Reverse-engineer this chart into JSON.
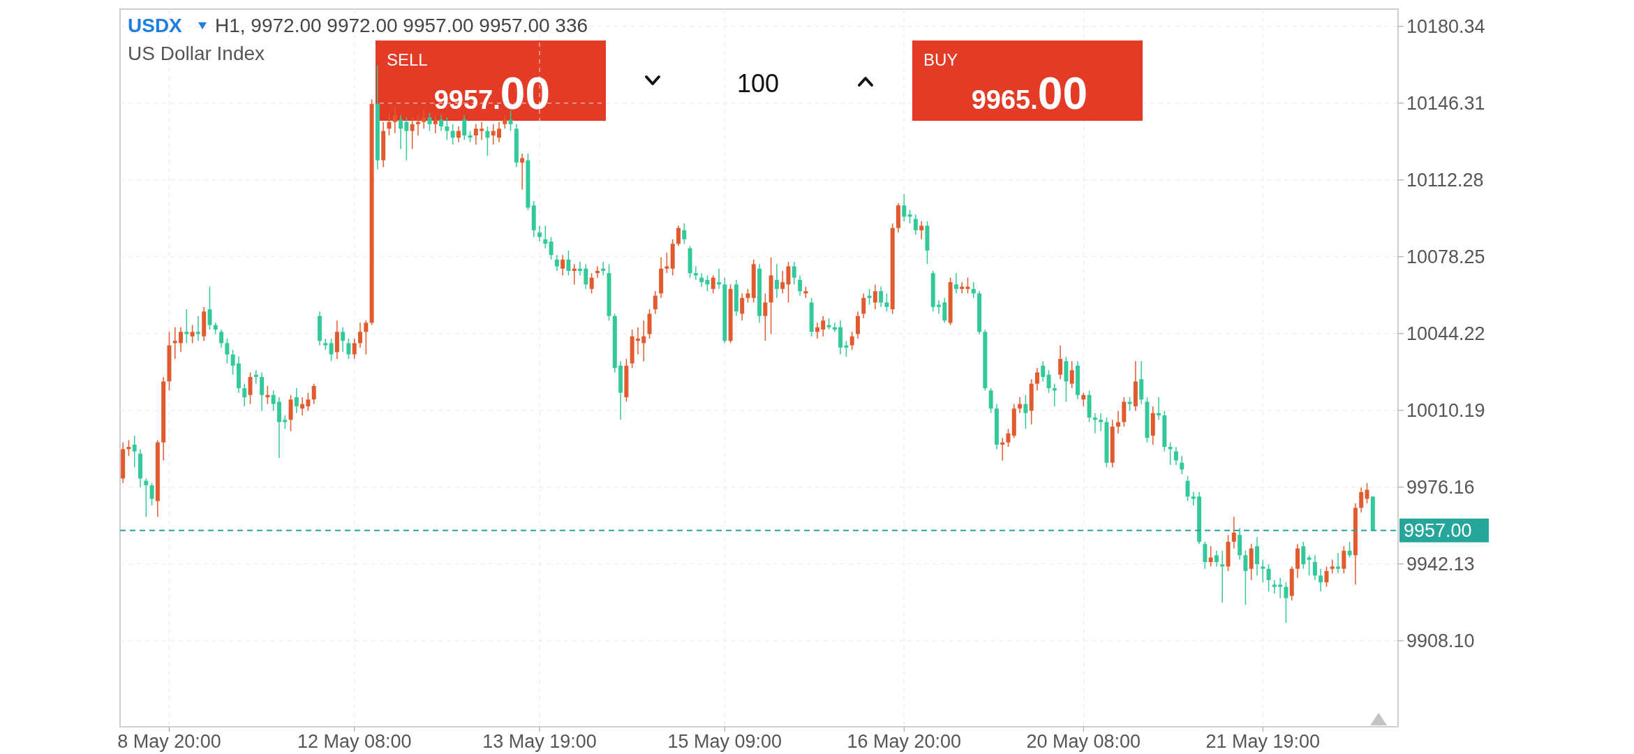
{
  "chart_data": {
    "type": "candlestick",
    "title": "USDX",
    "subtitle": "US Dollar Index",
    "annotations": [
      "H1, 9972.00 9972.00 9957.00 9957.00 336",
      "SELL",
      "9957.00",
      "100",
      "BUY",
      "9965.00"
    ],
    "categories": [
      null,
      null,
      null,
      null,
      null,
      null,
      null,
      null,
      "8 May 20:00",
      null,
      null,
      null,
      null,
      null,
      null,
      null,
      null,
      null,
      null,
      null,
      null,
      null,
      null,
      null,
      null,
      null,
      null,
      null,
      null,
      null,
      null,
      null,
      null,
      null,
      null,
      null,
      null,
      null,
      null,
      null,
      "12 May 08:00",
      null,
      null,
      null,
      null,
      null,
      null,
      null,
      null,
      null,
      null,
      null,
      null,
      null,
      null,
      null,
      null,
      null,
      null,
      null,
      null,
      null,
      null,
      null,
      null,
      null,
      null,
      null,
      null,
      null,
      null,
      null,
      "13 May 19:00",
      null,
      null,
      null,
      null,
      null,
      null,
      null,
      null,
      null,
      null,
      null,
      null,
      null,
      null,
      null,
      null,
      null,
      null,
      null,
      null,
      null,
      null,
      null,
      null,
      null,
      null,
      null,
      null,
      null,
      null,
      null,
      "15 May 09:00",
      null,
      null,
      null,
      null,
      null,
      null,
      null,
      null,
      null,
      null,
      null,
      null,
      null,
      null,
      null,
      null,
      null,
      null,
      null,
      null,
      null,
      null,
      null,
      null,
      null,
      null,
      null,
      null,
      null,
      null,
      "16 May 20:00",
      null,
      null,
      null,
      null,
      null,
      null,
      null,
      null,
      null,
      null,
      null,
      null,
      null,
      null,
      null,
      null,
      null,
      null,
      null,
      null,
      null,
      null,
      null,
      null,
      null,
      null,
      null,
      null,
      null,
      null,
      "20 May 08:00",
      null,
      null,
      null,
      null,
      null,
      null,
      null,
      null,
      null,
      null,
      null,
      null,
      null,
      null,
      null,
      null,
      null,
      null,
      null,
      null,
      null,
      null,
      null,
      null,
      null,
      null,
      null,
      null,
      null,
      null,
      "21 May 19:00",
      null,
      null,
      null,
      null,
      null,
      null,
      null,
      null,
      null,
      null,
      null,
      null,
      null,
      null,
      null,
      null,
      null,
      null,
      null
    ],
    "ohlc": [
      [
        9980,
        9996,
        9978,
        9993
      ],
      [
        9993,
        9997,
        9990,
        9994
      ],
      [
        9995,
        9999,
        9985,
        9992
      ],
      [
        9991,
        9993,
        9976,
        9980
      ],
      [
        9979,
        9980,
        9963,
        9977
      ],
      [
        9977,
        9978,
        9968,
        9971
      ],
      [
        9970,
        9997,
        9963,
        9996
      ],
      [
        9996,
        10025,
        9988,
        10023
      ],
      [
        10023,
        10045,
        10019,
        10039
      ],
      [
        10040,
        10047,
        10033,
        10041
      ],
      [
        10040,
        10047,
        10036,
        10045
      ],
      [
        10045,
        10055,
        10040,
        10044
      ],
      [
        10043,
        10048,
        10040,
        10045
      ],
      [
        10045,
        10052,
        10041,
        10044
      ],
      [
        10043,
        10056,
        10041,
        10054
      ],
      [
        10055,
        10065,
        10046,
        10048
      ],
      [
        10048,
        10049,
        10044,
        10046
      ],
      [
        10045,
        10046,
        10038,
        10040
      ],
      [
        10040,
        10042,
        10031,
        10035
      ],
      [
        10035,
        10037,
        10026,
        10030
      ],
      [
        10031,
        10034,
        10018,
        10020
      ],
      [
        10020,
        10022,
        10012,
        10016
      ],
      [
        10017,
        10027,
        10013,
        10025
      ],
      [
        10026,
        10028,
        10022,
        10025
      ],
      [
        10025,
        10027,
        10010,
        10017
      ],
      [
        10016,
        10021,
        10013,
        10017
      ],
      [
        10017,
        10019,
        10010,
        10013
      ],
      [
        10014,
        10016,
        9989,
        10005
      ],
      [
        10006,
        10008,
        10002,
        10005
      ],
      [
        10006,
        10017,
        10001,
        10015
      ],
      [
        10016,
        10020,
        10009,
        10012
      ],
      [
        10011,
        10016,
        10008,
        10013
      ],
      [
        10012,
        10018,
        10010,
        10015
      ],
      [
        10015,
        10022,
        10013,
        10021
      ],
      [
        10052,
        10054,
        10039,
        10041
      ],
      [
        10040,
        10042,
        10037,
        10039
      ],
      [
        10040,
        10042,
        10032,
        10035
      ],
      [
        10036,
        10050,
        10033,
        10045
      ],
      [
        10045,
        10047,
        10036,
        10041
      ],
      [
        10040,
        10042,
        10033,
        10035
      ],
      [
        10035,
        10042,
        10033,
        10040
      ],
      [
        10040,
        10049,
        10038,
        10045
      ],
      [
        10045,
        10050,
        10035,
        10049
      ],
      [
        10049,
        10148,
        10048,
        10146
      ],
      [
        10146,
        10163,
        10117,
        10121
      ],
      [
        10121,
        10138,
        10118,
        10134
      ],
      [
        10135,
        10142,
        10132,
        10138
      ],
      [
        10138,
        10145,
        10133,
        10141
      ],
      [
        10139,
        10141,
        10126,
        10135
      ],
      [
        10138,
        10140,
        10121,
        10134
      ],
      [
        10134,
        10140,
        10126,
        10137
      ],
      [
        10137,
        10141,
        10132,
        10138
      ],
      [
        10138,
        10143,
        10135,
        10140
      ],
      [
        10140,
        10142,
        10134,
        10137
      ],
      [
        10137,
        10141,
        10133,
        10139
      ],
      [
        10139,
        10141,
        10134,
        10136
      ],
      [
        10136,
        10140,
        10130,
        10134
      ],
      [
        10134,
        10137,
        10128,
        10131
      ],
      [
        10131,
        10136,
        10129,
        10134
      ],
      [
        10139,
        10141,
        10130,
        10132
      ],
      [
        10132,
        10134,
        10129,
        10131
      ],
      [
        10132,
        10137,
        10128,
        10135
      ],
      [
        10134,
        10138,
        10130,
        10135
      ],
      [
        10134,
        10136,
        10123,
        10131
      ],
      [
        10132,
        10137,
        10128,
        10134
      ],
      [
        10131,
        10138,
        10129,
        10135
      ],
      [
        10137,
        10141,
        10135,
        10139
      ],
      [
        10139,
        10143,
        10134,
        10137
      ],
      [
        10135,
        10137,
        10118,
        10120
      ],
      [
        10120,
        10124,
        10108,
        10122
      ],
      [
        10121,
        10124,
        10099,
        10100
      ],
      [
        10101,
        10103,
        10087,
        10090
      ],
      [
        10089,
        10092,
        10085,
        10087
      ],
      [
        10086,
        10092,
        10082,
        10084
      ],
      [
        10085,
        10087,
        10077,
        10079
      ],
      [
        10077,
        10079,
        10072,
        10074
      ],
      [
        10073,
        10079,
        10070,
        10077
      ],
      [
        10077,
        10081,
        10070,
        10072
      ],
      [
        10072,
        10075,
        10066,
        10073
      ],
      [
        10073,
        10076,
        10070,
        10072
      ],
      [
        10073,
        10075,
        10064,
        10066
      ],
      [
        10064,
        10071,
        10062,
        10069
      ],
      [
        10071,
        10074,
        10069,
        10072
      ],
      [
        10073,
        10076,
        10070,
        10072
      ],
      [
        10071,
        10075,
        10050,
        10052
      ],
      [
        10052,
        10053,
        10027,
        10029
      ],
      [
        10030,
        10032,
        10006,
        10018
      ],
      [
        10016,
        10033,
        10014,
        10030
      ],
      [
        10031,
        10046,
        10029,
        10043
      ],
      [
        10041,
        10047,
        10035,
        10042
      ],
      [
        10040,
        10050,
        10032,
        10043
      ],
      [
        10044,
        10055,
        10042,
        10053
      ],
      [
        10055,
        10063,
        10053,
        10061
      ],
      [
        10062,
        10078,
        10060,
        10073
      ],
      [
        10073,
        10080,
        10071,
        10074
      ],
      [
        10073,
        10086,
        10070,
        10084
      ],
      [
        10084,
        10092,
        10083,
        10091
      ],
      [
        10090,
        10093,
        10084,
        10086
      ],
      [
        10082,
        10083,
        10069,
        10071
      ],
      [
        10071,
        10074,
        10068,
        10070
      ],
      [
        10069,
        10071,
        10065,
        10067
      ],
      [
        10068,
        10070,
        10063,
        10066
      ],
      [
        10064,
        10070,
        10062,
        10069
      ],
      [
        10067,
        10073,
        10064,
        10066
      ],
      [
        10066,
        10069,
        10040,
        10041
      ],
      [
        10041,
        10066,
        10040,
        10064
      ],
      [
        10066,
        10068,
        10052,
        10054
      ],
      [
        10053,
        10062,
        10050,
        10060
      ],
      [
        10060,
        10064,
        10058,
        10062
      ],
      [
        10060,
        10077,
        10058,
        10075
      ],
      [
        10073,
        10075,
        10049,
        10052
      ],
      [
        10052,
        10062,
        10041,
        10058
      ],
      [
        10058,
        10078,
        10044,
        10070
      ],
      [
        10068,
        10075,
        10060,
        10064
      ],
      [
        10064,
        10072,
        10062,
        10067
      ],
      [
        10066,
        10076,
        10058,
        10074
      ],
      [
        10074,
        10076,
        10066,
        10069
      ],
      [
        10068,
        10070,
        10061,
        10063
      ],
      [
        10062,
        10065,
        10060,
        10063
      ],
      [
        10058,
        10060,
        10043,
        10045
      ],
      [
        10045,
        10049,
        10042,
        10047
      ],
      [
        10046,
        10052,
        10043,
        10050
      ],
      [
        10048,
        10051,
        10046,
        10047
      ],
      [
        10047,
        10049,
        10045,
        10046
      ],
      [
        10047,
        10050,
        10035,
        10038
      ],
      [
        10039,
        10041,
        10034,
        10038
      ],
      [
        10039,
        10045,
        10037,
        10043
      ],
      [
        10044,
        10054,
        10042,
        10052
      ],
      [
        10053,
        10062,
        10051,
        10060
      ],
      [
        10061,
        10064,
        10057,
        10060
      ],
      [
        10058,
        10066,
        10055,
        10063
      ],
      [
        10063,
        10065,
        10056,
        10058
      ],
      [
        10058,
        10062,
        10054,
        10056
      ],
      [
        10055,
        10093,
        10053,
        10091
      ],
      [
        10091,
        10102,
        10089,
        10101
      ],
      [
        10101,
        10106,
        10094,
        10096
      ],
      [
        10097,
        10099,
        10093,
        10096
      ],
      [
        10095,
        10097,
        10088,
        10090
      ],
      [
        10090,
        10094,
        10086,
        10092
      ],
      [
        10092,
        10094,
        10075,
        10081
      ],
      [
        10071,
        10072,
        10054,
        10056
      ],
      [
        10057,
        10059,
        10053,
        10056
      ],
      [
        10058,
        10060,
        10049,
        10050
      ],
      [
        10049,
        10069,
        10048,
        10067
      ],
      [
        10066,
        10071,
        10062,
        10064
      ],
      [
        10064,
        10067,
        10062,
        10065
      ],
      [
        10064,
        10069,
        10062,
        10065
      ],
      [
        10064,
        10067,
        10060,
        10062
      ],
      [
        10062,
        10063,
        10044,
        10045
      ],
      [
        10045,
        10046,
        10019,
        10020
      ],
      [
        10019,
        10020,
        10009,
        10011
      ],
      [
        10011,
        10013,
        9993,
        9995
      ],
      [
        9995,
        9998,
        9988,
        9996
      ],
      [
        9996,
        10002,
        9994,
        10000
      ],
      [
        9999,
        10013,
        9998,
        10011
      ],
      [
        10011,
        10016,
        10009,
        10013
      ],
      [
        10013,
        10017,
        10002,
        10009
      ],
      [
        10010,
        10024,
        10004,
        10022
      ],
      [
        10022,
        10029,
        10019,
        10027
      ],
      [
        10030,
        10032,
        10023,
        10025
      ],
      [
        10026,
        10028,
        10018,
        10020
      ],
      [
        10020,
        10022,
        10012,
        10019
      ],
      [
        10026,
        10039,
        10024,
        10033
      ],
      [
        10032,
        10034,
        10014,
        10023
      ],
      [
        10022,
        10032,
        10020,
        10028
      ],
      [
        10030,
        10032,
        10015,
        10017
      ],
      [
        10015,
        10018,
        10012,
        10017
      ],
      [
        10017,
        10019,
        10005,
        10007
      ],
      [
        10007,
        10009,
        10000,
        10006
      ],
      [
        10006,
        10009,
        10001,
        10005
      ],
      [
        10005,
        10007,
        9985,
        9987
      ],
      [
        9987,
        10006,
        9985,
        10003
      ],
      [
        10003,
        10010,
        10000,
        10005
      ],
      [
        10005,
        10016,
        10003,
        10014
      ],
      [
        10014,
        10016,
        10010,
        10013
      ],
      [
        10012,
        10032,
        10010,
        10023
      ],
      [
        10024,
        10032,
        10013,
        10015
      ],
      [
        10014,
        10016,
        9996,
        9998
      ],
      [
        9999,
        10012,
        9995,
        10009
      ],
      [
        10009,
        10016,
        10006,
        10008
      ],
      [
        10008,
        10010,
        9992,
        9994
      ],
      [
        9994,
        9996,
        9986,
        9993
      ],
      [
        9992,
        9994,
        9986,
        9988
      ],
      [
        9987,
        9990,
        9982,
        9984
      ],
      [
        9979,
        9981,
        9970,
        9972
      ],
      [
        9972,
        9974,
        9968,
        9971
      ],
      [
        9972,
        9974,
        9951,
        9952
      ],
      [
        9951,
        9952,
        9940,
        9943
      ],
      [
        9943,
        9950,
        9941,
        9945
      ],
      [
        9946,
        9948,
        9941,
        9943
      ],
      [
        9942,
        9948,
        9925,
        9941
      ],
      [
        9941,
        9955,
        9939,
        9952
      ],
      [
        9952,
        9963,
        9949,
        9956
      ],
      [
        9955,
        9958,
        9944,
        9946
      ],
      [
        9946,
        9948,
        9924,
        9939
      ],
      [
        9940,
        9951,
        9935,
        9949
      ],
      [
        9950,
        9954,
        9937,
        9942
      ],
      [
        9941,
        9944,
        9934,
        9940
      ],
      [
        9940,
        9942,
        9930,
        9935
      ],
      [
        9933,
        9935,
        9929,
        9932
      ],
      [
        9933,
        9936,
        9927,
        9932
      ],
      [
        9932,
        9934,
        9916,
        9927
      ],
      [
        9928,
        9941,
        9926,
        9940
      ],
      [
        9940,
        9951,
        9936,
        9949
      ],
      [
        9950,
        9952,
        9940,
        9942
      ],
      [
        9945,
        9946,
        9937,
        9944
      ],
      [
        9943,
        9946,
        9935,
        9937
      ],
      [
        9937,
        9940,
        9930,
        9934
      ],
      [
        9934,
        9941,
        9932,
        9939
      ],
      [
        9940,
        9944,
        9938,
        9941
      ],
      [
        9941,
        9947,
        9938,
        9940
      ],
      [
        9940,
        9950,
        9938,
        9948
      ],
      [
        9948,
        9952,
        9945,
        9946
      ],
      [
        9946,
        9969,
        9933,
        9967
      ],
      [
        9967,
        9976,
        9965,
        9974
      ],
      [
        9971,
        9978,
        9969,
        9975
      ],
      [
        9972,
        9972,
        9957,
        9957
      ]
    ],
    "colors": [
      "#e15b2e",
      "#e15b2e",
      "#34c99b",
      "#34c99b",
      "#34c99b",
      "#34c99b",
      "#e15b2e",
      "#e15b2e",
      "#e15b2e",
      "#e15b2e",
      "#e15b2e",
      "#34c99b",
      "#e15b2e",
      "#34c99b",
      "#e15b2e",
      "#34c99b",
      "#34c99b",
      "#34c99b",
      "#34c99b",
      "#34c99b",
      "#34c99b",
      "#34c99b",
      "#e15b2e",
      "#34c99b",
      "#34c99b",
      "#e15b2e",
      "#34c99b",
      "#34c99b",
      "#34c99b",
      "#e15b2e",
      "#34c99b",
      "#e15b2e",
      "#e15b2e",
      "#e15b2e",
      "#34c99b",
      "#34c99b",
      "#34c99b",
      "#e15b2e",
      "#34c99b",
      "#34c99b",
      "#e15b2e",
      "#e15b2e",
      "#e15b2e",
      "#e15b2e",
      "#34c99b",
      "#e15b2e",
      "#e15b2e",
      "#e15b2e",
      "#34c99b",
      "#34c99b",
      "#e15b2e",
      "#e15b2e",
      "#e15b2e",
      "#34c99b",
      "#e15b2e",
      "#34c99b",
      "#34c99b",
      "#34c99b",
      "#e15b2e",
      "#34c99b",
      "#34c99b",
      "#e15b2e",
      "#e15b2e",
      "#34c99b",
      "#e15b2e",
      "#e15b2e",
      "#e15b2e",
      "#34c99b",
      "#34c99b",
      "#e15b2e",
      "#34c99b",
      "#34c99b",
      "#34c99b",
      "#34c99b",
      "#34c99b",
      "#34c99b",
      "#e15b2e",
      "#34c99b",
      "#e15b2e",
      "#34c99b",
      "#34c99b",
      "#e15b2e",
      "#e15b2e",
      "#34c99b",
      "#34c99b",
      "#34c99b",
      "#34c99b",
      "#e15b2e",
      "#e15b2e",
      "#e15b2e",
      "#e15b2e",
      "#e15b2e",
      "#e15b2e",
      "#e15b2e",
      "#e15b2e",
      "#e15b2e",
      "#e15b2e",
      "#34c99b",
      "#34c99b",
      "#34c99b",
      "#34c99b",
      "#34c99b",
      "#e15b2e",
      "#34c99b",
      "#34c99b",
      "#e15b2e",
      "#34c99b",
      "#e15b2e",
      "#e15b2e",
      "#e15b2e",
      "#34c99b",
      "#e15b2e",
      "#e15b2e",
      "#34c99b",
      "#e15b2e",
      "#e15b2e",
      "#34c99b",
      "#34c99b",
      "#e15b2e",
      "#34c99b",
      "#e15b2e",
      "#e15b2e",
      "#34c99b",
      "#34c99b",
      "#34c99b",
      "#34c99b",
      "#e15b2e",
      "#e15b2e",
      "#e15b2e",
      "#34c99b",
      "#e15b2e",
      "#34c99b",
      "#34c99b",
      "#e15b2e",
      "#e15b2e",
      "#34c99b",
      "#34c99b",
      "#34c99b",
      "#e15b2e",
      "#34c99b",
      "#34c99b",
      "#34c99b",
      "#34c99b",
      "#e15b2e",
      "#34c99b",
      "#e15b2e",
      "#e15b2e",
      "#34c99b",
      "#34c99b",
      "#34c99b",
      "#34c99b",
      "#34c99b",
      "#e15b2e",
      "#e15b2e",
      "#e15b2e",
      "#e15b2e",
      "#34c99b",
      "#e15b2e",
      "#e15b2e",
      "#34c99b",
      "#34c99b",
      "#34c99b",
      "#e15b2e",
      "#34c99b",
      "#e15b2e",
      "#34c99b",
      "#e15b2e",
      "#34c99b",
      "#34c99b",
      "#34c99b",
      "#34c99b",
      "#e15b2e",
      "#e15b2e",
      "#e15b2e",
      "#34c99b",
      "#e15b2e",
      "#34c99b",
      "#34c99b",
      "#e15b2e",
      "#34c99b",
      "#34c99b",
      "#34c99b",
      "#34c99b",
      "#34c99b",
      "#34c99b",
      "#34c99b",
      "#34c99b",
      "#34c99b",
      "#e15b2e",
      "#34c99b",
      "#34c99b",
      "#e15b2e",
      "#e15b2e",
      "#34c99b",
      "#34c99b",
      "#e15b2e",
      "#34c99b",
      "#34c99b",
      "#34c99b",
      "#34c99b",
      "#34c99b",
      "#34c99b",
      "#e15b2e",
      "#e15b2e",
      "#34c99b",
      "#34c99b",
      "#34c99b",
      "#34c99b",
      "#e15b2e",
      "#e15b2e",
      "#34c99b",
      "#e15b2e",
      "#34c99b",
      "#e15b2e",
      "#e15b2e",
      "#e15b2e",
      "#34c99b"
    ],
    "ylim": [
      9870,
      10188
    ],
    "yticks": [
      {
        "value": 10180.34,
        "label": "10180.34"
      },
      {
        "value": 10146.31,
        "label": "10146.31"
      },
      {
        "value": 10112.28,
        "label": "10112.28"
      },
      {
        "value": 10078.25,
        "label": "10078.25"
      },
      {
        "value": 10044.22,
        "label": "10044.22"
      },
      {
        "value": 10010.19,
        "label": "10010.19"
      },
      {
        "value": 9976.16,
        "label": "9976.16"
      },
      {
        "value": 9942.13,
        "label": "9942.13"
      },
      {
        "value": 9908.1,
        "label": "9908.10"
      }
    ],
    "grid": true,
    "ref_lines": [
      {
        "axis": "y",
        "value": 9957,
        "label": "9957.00",
        "color": "#26a69a",
        "line_style": "dashed"
      }
    ]
  }
}
